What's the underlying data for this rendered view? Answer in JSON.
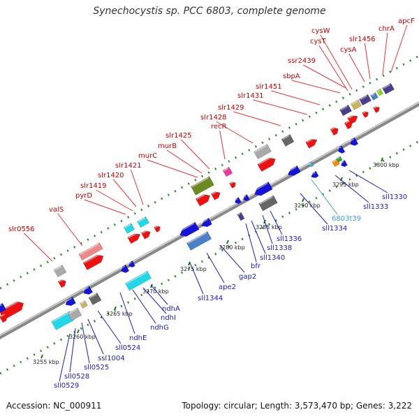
{
  "title": "Synechocystis sp. PCC 6803, complete genome",
  "footer": {
    "accession": "Accession: NC_000911",
    "stats": "Topology: circular; Length: 3,573,470 bp; Genes: 3,222"
  },
  "colors": {
    "top_label": "#cc0000",
    "bottom_label": "#1a1acc",
    "rna_label": "#3aa0d8",
    "backbone": "#888888",
    "dots": "#2a8a2a"
  },
  "top_genes": [
    "slr0556",
    "valS",
    "pyrD",
    "slr1419",
    "slr1420",
    "slr1421",
    "murC",
    "murB",
    "slr1425",
    "recR",
    "slr1428",
    "slr1429",
    "slr1431",
    "slr1451",
    "sbpA",
    "ssr2439",
    "cysT",
    "cysW",
    "cysA",
    "slr1456",
    "chrA",
    "apcF"
  ],
  "bottom_genes": [
    "sll0529",
    "sll0528",
    "sll0525",
    "ssl1004",
    "sll0524",
    "ndhE",
    "ndhG",
    "ndhI",
    "ndhA",
    "sll1344",
    "ape2",
    "gap2",
    "bfr",
    "sll1340",
    "sll1338",
    "sll1336",
    "sll1334",
    "6803t39",
    "sll1333",
    "sll1330"
  ],
  "kbp_ticks": [
    "3255 kbp",
    "3260 kbp",
    "3265 kbp",
    "3270 kbp",
    "3275 kbp",
    "3280 kbp",
    "3285 kbp",
    "3290 kbp",
    "3295 kbp",
    "3300 kbp"
  ]
}
